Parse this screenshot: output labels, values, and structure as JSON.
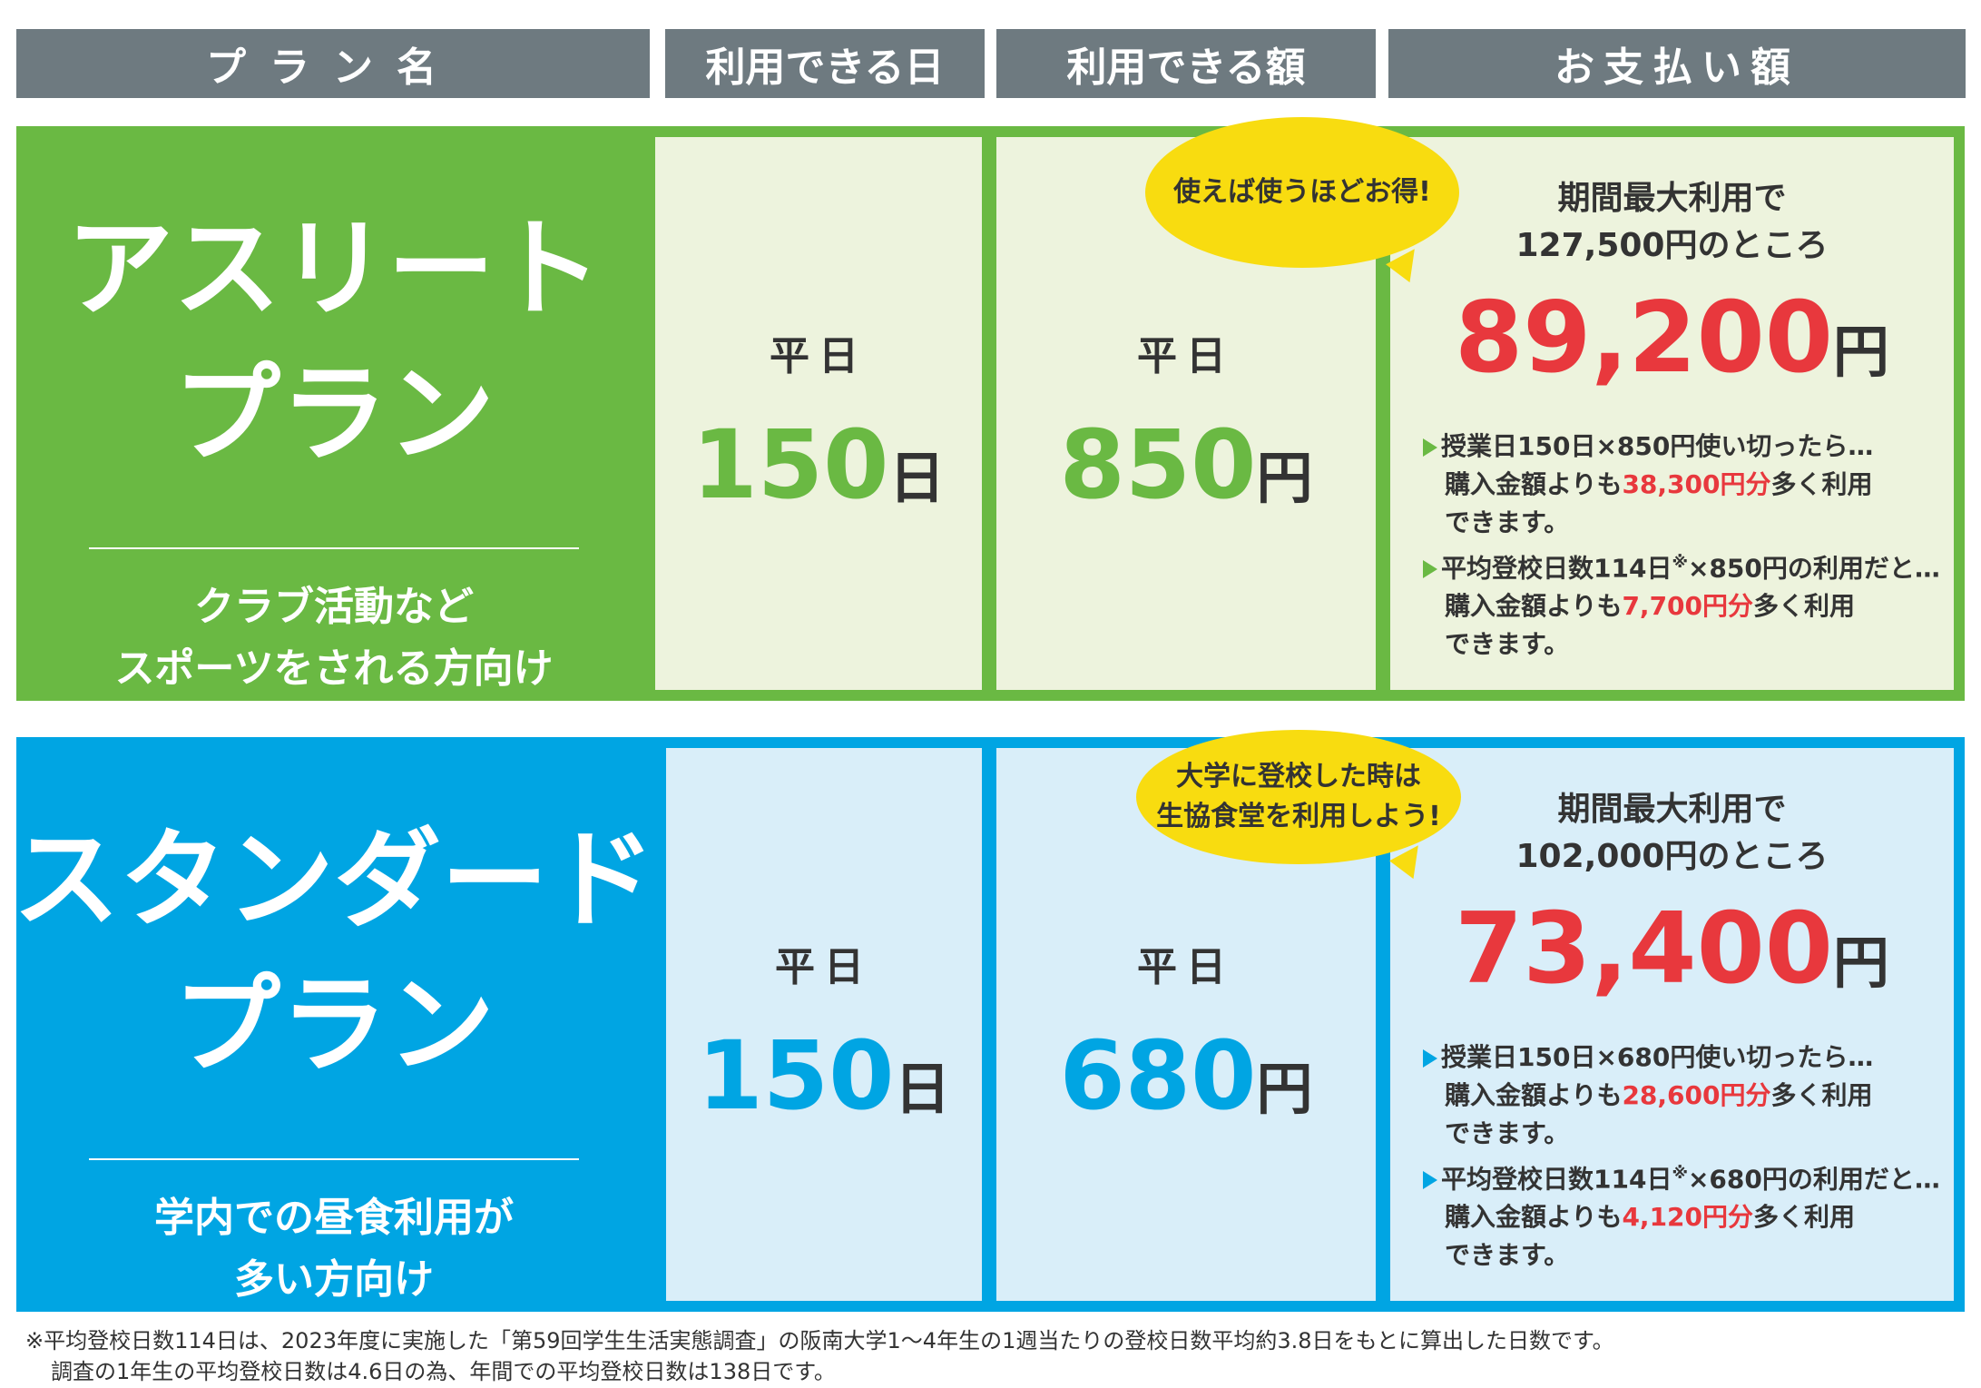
{
  "header": {
    "plan_name": "プラン名",
    "days": "利用できる日",
    "amount": "利用できる額",
    "payment": "お支払い額"
  },
  "colors": {
    "header_bg": "#6e7a80",
    "athlete_green": "#6ab943",
    "athlete_cell_bg": "#edf3dd",
    "standard_blue": "#00a5e3",
    "standard_cell_bg": "#d9eef9",
    "price_red": "#e8383d",
    "bubble_yellow": "#f8dc10"
  },
  "athlete": {
    "title_line1": "アスリート",
    "title_line2": "プラン",
    "desc_line1": "クラブ活動など",
    "desc_line2": "スポーツをされる方向け",
    "days_label": "平日",
    "days_value": "150",
    "days_unit": "日",
    "amount_label": "平日",
    "amount_value": "850",
    "amount_unit": "円",
    "bubble": "使えば使うほどお得!",
    "pay_lead1": "期間最大利用で",
    "pay_lead2": "127,500円のところ",
    "price": "89,200",
    "price_unit": "円",
    "note1_a": "授業日150日×850円使い切ったら…",
    "note1_b": "購入金額よりも",
    "note1_red": "38,300円分",
    "note1_c": "多く利用",
    "note1_d": "できます。",
    "note2_a": "平均登校日数114日",
    "note2_mark": "※",
    "note2_b": "×850円の利用だと…",
    "note2_c": "購入金額よりも",
    "note2_red": "7,700円分",
    "note2_d": "多く利用",
    "note2_e": "できます。"
  },
  "standard": {
    "title_line1": "スタンダード",
    "title_line2": "プラン",
    "desc_line1": "学内での昼食利用が",
    "desc_line2": "多い方向け",
    "days_label": "平日",
    "days_value": "150",
    "days_unit": "日",
    "amount_label": "平日",
    "amount_value": "680",
    "amount_unit": "円",
    "bubble_line1": "大学に登校した時は",
    "bubble_line2": "生協食堂を利用しよう!",
    "pay_lead1": "期間最大利用で",
    "pay_lead2": "102,000円のところ",
    "price": "73,400",
    "price_unit": "円",
    "note1_a": "授業日150日×680円使い切ったら…",
    "note1_b": "購入金額よりも",
    "note1_red": "28,600円分",
    "note1_c": "多く利用",
    "note1_d": "できます。",
    "note2_a": "平均登校日数114日",
    "note2_mark": "※",
    "note2_b": "×680円の利用だと…",
    "note2_c": "購入金額よりも",
    "note2_red": "4,120円分",
    "note2_d": "多く利用",
    "note2_e": "できます。"
  },
  "footnote": {
    "line1": "※平均登校日数114日は、2023年度に実施した「第59回学生生活実態調査」の阪南大学1～4年生の1週当たりの登校日数平均約3.8日をもとに算出した日数です。",
    "line2": "調査の1年生の平均登校日数は4.6日の為、年間での平均登校日数は138日です。"
  }
}
